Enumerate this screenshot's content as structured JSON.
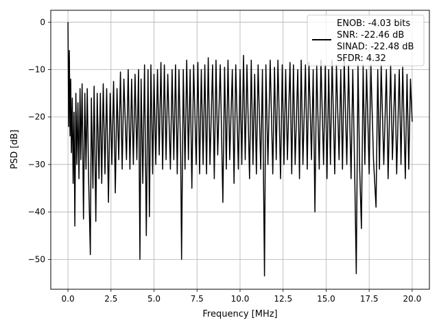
{
  "chart_data": {
    "type": "line",
    "title": "",
    "xlabel": "Frequency [MHz]",
    "ylabel": "PSD [dB]",
    "xlim": [
      -1.0,
      21.0
    ],
    "ylim": [
      -56.3,
      2.5
    ],
    "xticks": [
      0.0,
      2.5,
      5.0,
      7.5,
      10.0,
      12.5,
      15.0,
      17.5,
      20.0
    ],
    "xtick_labels": [
      "0.0",
      "2.5",
      "5.0",
      "7.5",
      "10.0",
      "12.5",
      "15.0",
      "17.5",
      "20.0"
    ],
    "yticks": [
      0,
      -10,
      -20,
      -30,
      -40,
      -50
    ],
    "ytick_labels": [
      "0",
      "−10",
      "−20",
      "−30",
      "−40",
      "−50"
    ],
    "grid": true,
    "legend_position": "top-right",
    "legend_lines": [
      "ENOB: -4.03 bits",
      "SNR: -22.46 dB",
      "SINAD: -22.48 dB",
      "SFDR: 4.32"
    ],
    "series_color": "#000000",
    "series": [
      {
        "description": "Noise-dominated PSD spectrum, DC peak at 0 dB, bulk between about -30 and -8 dB",
        "points": [
          [
            0.0,
            0.0
          ],
          [
            0.04,
            -22.0
          ],
          [
            0.08,
            -6.0
          ],
          [
            0.12,
            -24.0
          ],
          [
            0.16,
            -12.0
          ],
          [
            0.2,
            -27.5
          ],
          [
            0.25,
            -16.0
          ],
          [
            0.3,
            -34.0
          ],
          [
            0.35,
            -19.0
          ],
          [
            0.4,
            -43.0
          ],
          [
            0.46,
            -15.0
          ],
          [
            0.52,
            -30.0
          ],
          [
            0.58,
            -17.0
          ],
          [
            0.64,
            -33.0
          ],
          [
            0.7,
            -14.0
          ],
          [
            0.75,
            -29.0
          ],
          [
            0.82,
            -13.0
          ],
          [
            0.9,
            -41.5
          ],
          [
            0.98,
            -15.0
          ],
          [
            1.05,
            -31.0
          ],
          [
            1.12,
            -14.0
          ],
          [
            1.2,
            -33.0
          ],
          [
            1.3,
            -49.0
          ],
          [
            1.36,
            -16.0
          ],
          [
            1.45,
            -35.0
          ],
          [
            1.52,
            -13.5
          ],
          [
            1.62,
            -42.0
          ],
          [
            1.7,
            -15.0
          ],
          [
            1.8,
            -33.0
          ],
          [
            1.88,
            -15.0
          ],
          [
            1.96,
            -34.0
          ],
          [
            2.05,
            -13.0
          ],
          [
            2.15,
            -32.0
          ],
          [
            2.25,
            -14.0
          ],
          [
            2.35,
            -38.0
          ],
          [
            2.45,
            -15.0
          ],
          [
            2.55,
            -30.0
          ],
          [
            2.65,
            -12.5
          ],
          [
            2.75,
            -36.0
          ],
          [
            2.85,
            -14.0
          ],
          [
            2.95,
            -29.0
          ],
          [
            3.05,
            -10.5
          ],
          [
            3.15,
            -31.0
          ],
          [
            3.25,
            -12.0
          ],
          [
            3.4,
            -29.0
          ],
          [
            3.5,
            -10.0
          ],
          [
            3.6,
            -31.0
          ],
          [
            3.7,
            -12.0
          ],
          [
            3.8,
            -30.0
          ],
          [
            3.9,
            -11.0
          ],
          [
            4.0,
            -29.0
          ],
          [
            4.1,
            -10.0
          ],
          [
            4.18,
            -50.0
          ],
          [
            4.25,
            -12.0
          ],
          [
            4.35,
            -34.0
          ],
          [
            4.45,
            -9.0
          ],
          [
            4.55,
            -45.0
          ],
          [
            4.65,
            -10.0
          ],
          [
            4.73,
            -41.0
          ],
          [
            4.82,
            -9.0
          ],
          [
            4.92,
            -32.0
          ],
          [
            5.0,
            -11.0
          ],
          [
            5.1,
            -30.0
          ],
          [
            5.2,
            -10.0
          ],
          [
            5.3,
            -28.0
          ],
          [
            5.4,
            -8.5
          ],
          [
            5.5,
            -31.0
          ],
          [
            5.6,
            -9.0
          ],
          [
            5.7,
            -29.0
          ],
          [
            5.8,
            -11.0
          ],
          [
            5.95,
            -31.0
          ],
          [
            6.05,
            -10.0
          ],
          [
            6.15,
            -29.0
          ],
          [
            6.25,
            -9.0
          ],
          [
            6.35,
            -32.0
          ],
          [
            6.45,
            -10.0
          ],
          [
            6.55,
            -28.0
          ],
          [
            6.6,
            -50.0
          ],
          [
            6.7,
            -10.0
          ],
          [
            6.8,
            -31.0
          ],
          [
            6.9,
            -8.0
          ],
          [
            7.0,
            -29.0
          ],
          [
            7.1,
            -10.0
          ],
          [
            7.2,
            -35.0
          ],
          [
            7.3,
            -9.0
          ],
          [
            7.45,
            -30.0
          ],
          [
            7.55,
            -8.5
          ],
          [
            7.65,
            -32.0
          ],
          [
            7.75,
            -10.0
          ],
          [
            7.85,
            -30.0
          ],
          [
            7.95,
            -9.0
          ],
          [
            8.05,
            -32.0
          ],
          [
            8.15,
            -7.5
          ],
          [
            8.25,
            -30.0
          ],
          [
            8.4,
            -9.0
          ],
          [
            8.5,
            -33.0
          ],
          [
            8.6,
            -8.0
          ],
          [
            8.7,
            -28.0
          ],
          [
            8.85,
            -9.0
          ],
          [
            9.0,
            -38.0
          ],
          [
            9.1,
            -9.5
          ],
          [
            9.2,
            -31.0
          ],
          [
            9.3,
            -8.0
          ],
          [
            9.4,
            -29.0
          ],
          [
            9.55,
            -10.0
          ],
          [
            9.65,
            -34.0
          ],
          [
            9.75,
            -9.0
          ],
          [
            9.9,
            -31.0
          ],
          [
            10.0,
            -10.0
          ],
          [
            10.1,
            -30.0
          ],
          [
            10.2,
            -7.0
          ],
          [
            10.3,
            -29.0
          ],
          [
            10.4,
            -9.0
          ],
          [
            10.55,
            -33.0
          ],
          [
            10.65,
            -8.0
          ],
          [
            10.75,
            -30.0
          ],
          [
            10.85,
            -11.0
          ],
          [
            10.95,
            -32.0
          ],
          [
            11.05,
            -9.0
          ],
          [
            11.2,
            -31.0
          ],
          [
            11.3,
            -10.0
          ],
          [
            11.42,
            -53.5
          ],
          [
            11.5,
            -9.0
          ],
          [
            11.62,
            -30.0
          ],
          [
            11.75,
            -8.0
          ],
          [
            11.9,
            -32.0
          ],
          [
            12.0,
            -9.5
          ],
          [
            12.1,
            -29.0
          ],
          [
            12.2,
            -8.0
          ],
          [
            12.35,
            -33.0
          ],
          [
            12.45,
            -9.0
          ],
          [
            12.55,
            -30.0
          ],
          [
            12.65,
            -10.0
          ],
          [
            12.75,
            -29.0
          ],
          [
            12.9,
            -8.5
          ],
          [
            13.0,
            -32.0
          ],
          [
            13.1,
            -9.0
          ],
          [
            13.2,
            -30.0
          ],
          [
            13.35,
            -10.0
          ],
          [
            13.45,
            -33.0
          ],
          [
            13.55,
            -8.0
          ],
          [
            13.65,
            -30.0
          ],
          [
            13.8,
            -9.0
          ],
          [
            13.9,
            -31.0
          ],
          [
            14.0,
            -8.5
          ],
          [
            14.15,
            -29.0
          ],
          [
            14.25,
            -10.0
          ],
          [
            14.35,
            -40.0
          ],
          [
            14.45,
            -9.0
          ],
          [
            14.6,
            -31.0
          ],
          [
            14.7,
            -8.0
          ],
          [
            14.85,
            -30.0
          ],
          [
            14.95,
            -9.0
          ],
          [
            15.05,
            -33.0
          ],
          [
            15.15,
            -10.0
          ],
          [
            15.25,
            -30.0
          ],
          [
            15.35,
            -8.0
          ],
          [
            15.5,
            -32.0
          ],
          [
            15.6,
            -9.0
          ],
          [
            15.75,
            -29.0
          ],
          [
            15.85,
            -10.0
          ],
          [
            15.95,
            -31.0
          ],
          [
            16.05,
            -8.0
          ],
          [
            16.2,
            -30.0
          ],
          [
            16.3,
            -9.0
          ],
          [
            16.45,
            -33.0
          ],
          [
            16.55,
            -10.0
          ],
          [
            16.65,
            -30.0
          ],
          [
            16.75,
            -53.0
          ],
          [
            16.85,
            -9.0
          ],
          [
            16.95,
            -31.0
          ],
          [
            17.05,
            -43.5
          ],
          [
            17.15,
            -9.0
          ],
          [
            17.25,
            -30.0
          ],
          [
            17.35,
            -10.0
          ],
          [
            17.5,
            -32.0
          ],
          [
            17.6,
            -9.0
          ],
          [
            17.75,
            -29.0
          ],
          [
            17.9,
            -39.0
          ],
          [
            18.0,
            -10.0
          ],
          [
            18.1,
            -31.0
          ],
          [
            18.2,
            -9.0
          ],
          [
            18.35,
            -30.0
          ],
          [
            18.5,
            -10.0
          ],
          [
            18.6,
            -33.0
          ],
          [
            18.75,
            -9.0
          ],
          [
            18.85,
            -29.0
          ],
          [
            19.0,
            -11.0
          ],
          [
            19.1,
            -32.0
          ],
          [
            19.25,
            -10.0
          ],
          [
            19.35,
            -30.0
          ],
          [
            19.45,
            -9.5
          ],
          [
            19.6,
            -33.0
          ],
          [
            19.7,
            -11.0
          ],
          [
            19.8,
            -31.0
          ],
          [
            19.9,
            -12.0
          ],
          [
            20.0,
            -21.0
          ]
        ]
      }
    ]
  }
}
